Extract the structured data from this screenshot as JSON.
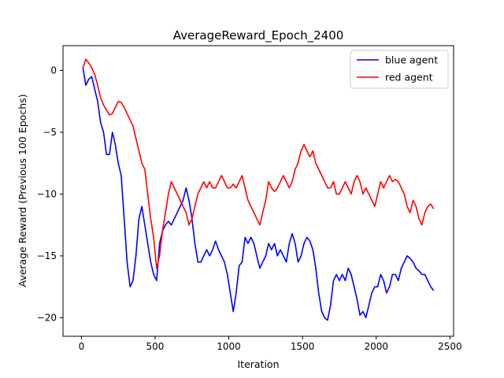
{
  "chart_data": {
    "type": "line",
    "title": "AverageReward_Epoch_2400",
    "xlabel": "Iteration",
    "ylabel": "Average Reward (Previous 100 Epochs)",
    "xlim": [
      -125,
      2525
    ],
    "ylim": [
      -21.5,
      2.0
    ],
    "xticks": [
      0,
      500,
      1000,
      1500,
      2000,
      2500
    ],
    "yticks": [
      0,
      -5,
      -10,
      -15,
      -20
    ],
    "grid": false,
    "legend_position": "top-right",
    "series": [
      {
        "name": "blue agent",
        "color": "#0000ff",
        "points": [
          [
            10,
            0.2
          ],
          [
            30,
            -1.2
          ],
          [
            50,
            -0.7
          ],
          [
            70,
            -0.5
          ],
          [
            90,
            -1.5
          ],
          [
            110,
            -2.5
          ],
          [
            130,
            -4.2
          ],
          [
            150,
            -5.0
          ],
          [
            170,
            -6.8
          ],
          [
            190,
            -6.8
          ],
          [
            210,
            -5.0
          ],
          [
            230,
            -6.0
          ],
          [
            250,
            -7.5
          ],
          [
            270,
            -8.5
          ],
          [
            290,
            -12.0
          ],
          [
            310,
            -15.5
          ],
          [
            330,
            -17.5
          ],
          [
            350,
            -17.0
          ],
          [
            370,
            -15.0
          ],
          [
            390,
            -12.0
          ],
          [
            410,
            -11.0
          ],
          [
            430,
            -12.5
          ],
          [
            450,
            -14.0
          ],
          [
            470,
            -15.5
          ],
          [
            490,
            -16.5
          ],
          [
            510,
            -17.0
          ],
          [
            530,
            -14.0
          ],
          [
            550,
            -13.0
          ],
          [
            570,
            -12.5
          ],
          [
            590,
            -12.2
          ],
          [
            610,
            -12.5
          ],
          [
            630,
            -12.0
          ],
          [
            650,
            -11.5
          ],
          [
            670,
            -11.0
          ],
          [
            690,
            -10.5
          ],
          [
            710,
            -9.5
          ],
          [
            730,
            -10.5
          ],
          [
            750,
            -12.0
          ],
          [
            770,
            -14.0
          ],
          [
            790,
            -15.5
          ],
          [
            810,
            -15.5
          ],
          [
            830,
            -15.0
          ],
          [
            850,
            -14.5
          ],
          [
            870,
            -15.0
          ],
          [
            890,
            -14.5
          ],
          [
            910,
            -13.8
          ],
          [
            930,
            -14.5
          ],
          [
            950,
            -15.0
          ],
          [
            970,
            -15.5
          ],
          [
            990,
            -16.5
          ],
          [
            1010,
            -18.0
          ],
          [
            1030,
            -19.5
          ],
          [
            1050,
            -18.0
          ],
          [
            1070,
            -15.8
          ],
          [
            1090,
            -15.5
          ],
          [
            1110,
            -13.5
          ],
          [
            1130,
            -14.0
          ],
          [
            1150,
            -13.5
          ],
          [
            1170,
            -14.0
          ],
          [
            1190,
            -15.0
          ],
          [
            1210,
            -16.0
          ],
          [
            1230,
            -15.5
          ],
          [
            1250,
            -15.0
          ],
          [
            1270,
            -14.0
          ],
          [
            1290,
            -14.5
          ],
          [
            1310,
            -14.0
          ],
          [
            1330,
            -15.0
          ],
          [
            1350,
            -14.5
          ],
          [
            1370,
            -15.0
          ],
          [
            1390,
            -15.5
          ],
          [
            1410,
            -14.0
          ],
          [
            1430,
            -13.2
          ],
          [
            1450,
            -14.0
          ],
          [
            1470,
            -15.5
          ],
          [
            1490,
            -15.0
          ],
          [
            1510,
            -14.0
          ],
          [
            1530,
            -13.5
          ],
          [
            1550,
            -13.8
          ],
          [
            1570,
            -14.5
          ],
          [
            1590,
            -16.0
          ],
          [
            1610,
            -18.0
          ],
          [
            1630,
            -19.5
          ],
          [
            1650,
            -20.0
          ],
          [
            1670,
            -20.2
          ],
          [
            1690,
            -19.0
          ],
          [
            1710,
            -17.0
          ],
          [
            1730,
            -16.5
          ],
          [
            1750,
            -17.0
          ],
          [
            1770,
            -16.5
          ],
          [
            1790,
            -17.0
          ],
          [
            1810,
            -16.0
          ],
          [
            1830,
            -16.5
          ],
          [
            1850,
            -17.5
          ],
          [
            1870,
            -18.5
          ],
          [
            1890,
            -19.8
          ],
          [
            1910,
            -19.5
          ],
          [
            1930,
            -20.0
          ],
          [
            1950,
            -19.0
          ],
          [
            1970,
            -18.0
          ],
          [
            1990,
            -17.5
          ],
          [
            2010,
            -17.5
          ],
          [
            2030,
            -16.5
          ],
          [
            2050,
            -17.0
          ],
          [
            2070,
            -18.0
          ],
          [
            2090,
            -17.5
          ],
          [
            2110,
            -16.5
          ],
          [
            2130,
            -16.5
          ],
          [
            2150,
            -17.0
          ],
          [
            2170,
            -16.0
          ],
          [
            2190,
            -15.5
          ],
          [
            2210,
            -15.0
          ],
          [
            2230,
            -15.2
          ],
          [
            2250,
            -15.5
          ],
          [
            2270,
            -16.0
          ],
          [
            2290,
            -16.2
          ],
          [
            2310,
            -16.5
          ],
          [
            2330,
            -16.5
          ],
          [
            2350,
            -17.0
          ],
          [
            2370,
            -17.5
          ],
          [
            2390,
            -17.8
          ]
        ]
      },
      {
        "name": "red agent",
        "color": "#ff0000",
        "points": [
          [
            10,
            0.2
          ],
          [
            30,
            0.9
          ],
          [
            50,
            0.6
          ],
          [
            70,
            0.2
          ],
          [
            90,
            -0.3
          ],
          [
            110,
            -1.2
          ],
          [
            130,
            -2.2
          ],
          [
            150,
            -2.8
          ],
          [
            170,
            -3.2
          ],
          [
            190,
            -3.6
          ],
          [
            210,
            -3.5
          ],
          [
            230,
            -3.0
          ],
          [
            250,
            -2.5
          ],
          [
            270,
            -2.6
          ],
          [
            290,
            -3.0
          ],
          [
            310,
            -3.5
          ],
          [
            330,
            -4.0
          ],
          [
            350,
            -4.5
          ],
          [
            370,
            -5.5
          ],
          [
            390,
            -6.5
          ],
          [
            410,
            -7.5
          ],
          [
            430,
            -8.0
          ],
          [
            450,
            -10.0
          ],
          [
            470,
            -12.0
          ],
          [
            490,
            -13.5
          ],
          [
            510,
            -16.0
          ],
          [
            530,
            -15.0
          ],
          [
            550,
            -13.0
          ],
          [
            570,
            -11.5
          ],
          [
            590,
            -10.0
          ],
          [
            610,
            -9.0
          ],
          [
            630,
            -9.5
          ],
          [
            650,
            -10.0
          ],
          [
            670,
            -10.5
          ],
          [
            690,
            -11.0
          ],
          [
            710,
            -11.5
          ],
          [
            730,
            -12.5
          ],
          [
            750,
            -12.0
          ],
          [
            770,
            -11.0
          ],
          [
            790,
            -10.0
          ],
          [
            810,
            -9.5
          ],
          [
            830,
            -9.0
          ],
          [
            850,
            -9.5
          ],
          [
            870,
            -9.0
          ],
          [
            890,
            -9.5
          ],
          [
            910,
            -9.5
          ],
          [
            930,
            -9.0
          ],
          [
            950,
            -8.5
          ],
          [
            970,
            -9.0
          ],
          [
            990,
            -9.5
          ],
          [
            1010,
            -9.5
          ],
          [
            1030,
            -9.2
          ],
          [
            1050,
            -9.5
          ],
          [
            1070,
            -9.0
          ],
          [
            1090,
            -8.5
          ],
          [
            1110,
            -9.5
          ],
          [
            1130,
            -10.5
          ],
          [
            1150,
            -11.0
          ],
          [
            1170,
            -11.5
          ],
          [
            1190,
            -12.0
          ],
          [
            1210,
            -12.5
          ],
          [
            1230,
            -11.5
          ],
          [
            1250,
            -10.5
          ],
          [
            1270,
            -9.0
          ],
          [
            1290,
            -9.5
          ],
          [
            1310,
            -9.8
          ],
          [
            1330,
            -9.5
          ],
          [
            1350,
            -9.0
          ],
          [
            1370,
            -8.5
          ],
          [
            1390,
            -9.0
          ],
          [
            1410,
            -9.5
          ],
          [
            1430,
            -9.0
          ],
          [
            1450,
            -8.0
          ],
          [
            1470,
            -7.5
          ],
          [
            1490,
            -6.5
          ],
          [
            1510,
            -6.0
          ],
          [
            1530,
            -6.5
          ],
          [
            1550,
            -7.0
          ],
          [
            1570,
            -6.5
          ],
          [
            1590,
            -7.5
          ],
          [
            1610,
            -8.0
          ],
          [
            1630,
            -8.5
          ],
          [
            1650,
            -9.0
          ],
          [
            1670,
            -9.5
          ],
          [
            1690,
            -9.5
          ],
          [
            1710,
            -9.0
          ],
          [
            1730,
            -10.0
          ],
          [
            1750,
            -10.0
          ],
          [
            1770,
            -9.5
          ],
          [
            1790,
            -9.0
          ],
          [
            1810,
            -9.5
          ],
          [
            1830,
            -10.0
          ],
          [
            1850,
            -9.0
          ],
          [
            1870,
            -8.5
          ],
          [
            1890,
            -9.0
          ],
          [
            1910,
            -10.0
          ],
          [
            1930,
            -9.5
          ],
          [
            1950,
            -10.0
          ],
          [
            1970,
            -10.5
          ],
          [
            1990,
            -11.0
          ],
          [
            2010,
            -10.0
          ],
          [
            2030,
            -9.0
          ],
          [
            2050,
            -9.5
          ],
          [
            2070,
            -9.0
          ],
          [
            2090,
            -8.5
          ],
          [
            2110,
            -9.0
          ],
          [
            2130,
            -8.8
          ],
          [
            2150,
            -9.0
          ],
          [
            2170,
            -9.5
          ],
          [
            2190,
            -10.0
          ],
          [
            2210,
            -11.0
          ],
          [
            2230,
            -11.5
          ],
          [
            2250,
            -10.5
          ],
          [
            2270,
            -11.0
          ],
          [
            2290,
            -12.0
          ],
          [
            2310,
            -12.5
          ],
          [
            2330,
            -11.5
          ],
          [
            2350,
            -11.0
          ],
          [
            2370,
            -10.8
          ],
          [
            2390,
            -11.2
          ]
        ]
      }
    ]
  }
}
